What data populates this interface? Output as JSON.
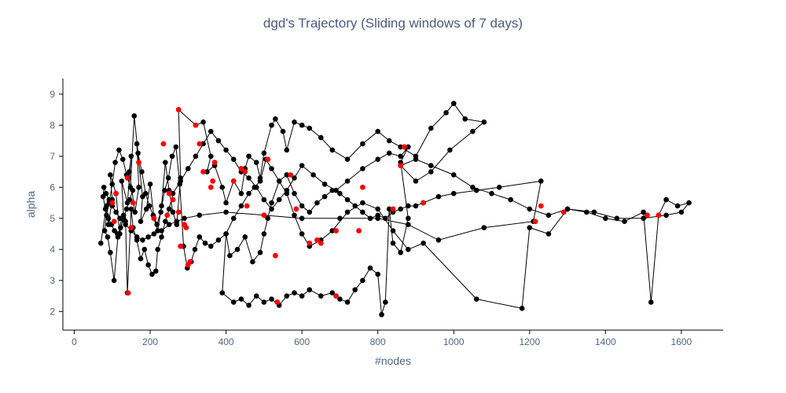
{
  "chart_data": {
    "type": "scatter",
    "mode": "lines+markers",
    "title": "dgd's Trajectory (Sliding windows of 7 days)",
    "xlabel": "#nodes",
    "ylabel": "alpha",
    "xlim": [
      -30,
      1710
    ],
    "ylim": [
      1.4,
      9.5
    ],
    "xticks": [
      0,
      200,
      400,
      600,
      800,
      1000,
      1200,
      1400,
      1600
    ],
    "yticks": [
      2,
      3,
      4,
      5,
      6,
      7,
      8,
      9
    ],
    "grid": false,
    "line_color": "#000000",
    "point_color": "#000000",
    "highlight_color": "#ff0000",
    "trajectory": [
      [
        70,
        4.2
      ],
      [
        85,
        5.4
      ],
      [
        90,
        4.8
      ],
      [
        100,
        5.6
      ],
      [
        95,
        6.4
      ],
      [
        110,
        5.8
      ],
      [
        120,
        4.5
      ],
      [
        130,
        5.1
      ],
      [
        125,
        6.2
      ],
      [
        140,
        5.5
      ],
      [
        150,
        7.0
      ],
      [
        145,
        6.5
      ],
      [
        160,
        5.2
      ],
      [
        170,
        6.0
      ],
      [
        165,
        7.4
      ],
      [
        180,
        5.7
      ],
      [
        175,
        4.9
      ],
      [
        190,
        5.3
      ],
      [
        200,
        6.1
      ],
      [
        210,
        5.0
      ],
      [
        220,
        4.6
      ],
      [
        230,
        5.4
      ],
      [
        240,
        6.8
      ],
      [
        250,
        5.9
      ],
      [
        260,
        5.2
      ],
      [
        270,
        4.8
      ],
      [
        280,
        6.3
      ],
      [
        275,
        8.5
      ],
      [
        320,
        8.0
      ],
      [
        340,
        8.1
      ],
      [
        360,
        7.0
      ],
      [
        350,
        6.5
      ],
      [
        370,
        6.7
      ],
      [
        390,
        6.0
      ],
      [
        400,
        5.5
      ],
      [
        420,
        6.2
      ],
      [
        440,
        5.8
      ],
      [
        450,
        6.6
      ],
      [
        460,
        7.0
      ],
      [
        480,
        6.8
      ],
      [
        490,
        6.3
      ],
      [
        500,
        7.1
      ],
      [
        520,
        8.0
      ],
      [
        530,
        8.2
      ],
      [
        550,
        7.8
      ],
      [
        560,
        7.2
      ],
      [
        580,
        8.1
      ],
      [
        600,
        8.0
      ],
      [
        620,
        7.9
      ],
      [
        650,
        7.6
      ],
      [
        680,
        7.2
      ],
      [
        720,
        6.9
      ],
      [
        760,
        7.4
      ],
      [
        800,
        7.8
      ],
      [
        830,
        7.5
      ],
      [
        860,
        7.3
      ],
      [
        900,
        7.0
      ],
      [
        940,
        7.9
      ],
      [
        980,
        8.4
      ],
      [
        1000,
        8.7
      ],
      [
        1030,
        8.2
      ],
      [
        1080,
        8.1
      ],
      [
        1050,
        7.8
      ],
      [
        990,
        7.2
      ],
      [
        940,
        6.5
      ],
      [
        900,
        6.2
      ],
      [
        860,
        6.7
      ],
      [
        900,
        6.9
      ],
      [
        940,
        6.7
      ],
      [
        1000,
        6.4
      ],
      [
        1050,
        6.0
      ],
      [
        1100,
        5.8
      ],
      [
        1150,
        5.6
      ],
      [
        1200,
        5.3
      ],
      [
        1250,
        5.1
      ],
      [
        1300,
        5.3
      ],
      [
        1350,
        5.2
      ],
      [
        1400,
        5.0
      ],
      [
        1450,
        4.9
      ],
      [
        1500,
        5.2
      ],
      [
        1520,
        2.3
      ],
      [
        1540,
        5.1
      ],
      [
        1560,
        5.6
      ],
      [
        1590,
        5.4
      ],
      [
        1620,
        5.5
      ],
      [
        1600,
        5.2
      ],
      [
        1560,
        5.1
      ],
      [
        1500,
        5.0
      ],
      [
        1430,
        5.0
      ],
      [
        1370,
        5.2
      ],
      [
        1300,
        5.3
      ],
      [
        1250,
        4.5
      ],
      [
        1200,
        4.7
      ],
      [
        1180,
        2.1
      ],
      [
        1060,
        2.4
      ],
      [
        920,
        4.2
      ],
      [
        880,
        4.0
      ],
      [
        840,
        4.6
      ],
      [
        800,
        5.3
      ],
      [
        760,
        5.5
      ],
      [
        720,
        5.2
      ],
      [
        680,
        4.6
      ],
      [
        650,
        4.3
      ],
      [
        620,
        4.1
      ],
      [
        600,
        4.5
      ],
      [
        580,
        5.1
      ],
      [
        560,
        5.8
      ],
      [
        540,
        6.2
      ],
      [
        520,
        5.5
      ],
      [
        510,
        5.0
      ],
      [
        500,
        4.5
      ],
      [
        490,
        3.9
      ],
      [
        470,
        3.6
      ],
      [
        450,
        4.4
      ],
      [
        430,
        4.0
      ],
      [
        410,
        3.8
      ],
      [
        400,
        4.5
      ],
      [
        390,
        2.6
      ],
      [
        420,
        2.3
      ],
      [
        440,
        2.4
      ],
      [
        460,
        2.2
      ],
      [
        480,
        2.5
      ],
      [
        500,
        2.3
      ],
      [
        520,
        2.4
      ],
      [
        540,
        2.2
      ],
      [
        560,
        2.5
      ],
      [
        580,
        2.6
      ],
      [
        600,
        2.5
      ],
      [
        620,
        2.7
      ],
      [
        650,
        2.5
      ],
      [
        680,
        2.6
      ],
      [
        700,
        2.4
      ],
      [
        720,
        2.3
      ],
      [
        740,
        2.7
      ],
      [
        760,
        3.0
      ],
      [
        780,
        3.4
      ],
      [
        800,
        3.2
      ],
      [
        810,
        1.9
      ],
      [
        820,
        2.3
      ],
      [
        830,
        5.3
      ],
      [
        840,
        4.2
      ],
      [
        860,
        3.9
      ],
      [
        880,
        5.0
      ],
      [
        860,
        6.8
      ],
      [
        880,
        7.3
      ],
      [
        860,
        7.0
      ],
      [
        830,
        7.1
      ],
      [
        800,
        6.9
      ],
      [
        760,
        6.6
      ],
      [
        720,
        6.2
      ],
      [
        690,
        5.9
      ],
      [
        660,
        6.1
      ],
      [
        630,
        6.4
      ],
      [
        600,
        6.7
      ],
      [
        580,
        6.3
      ],
      [
        560,
        5.9
      ],
      [
        540,
        5.6
      ],
      [
        520,
        5.3
      ],
      [
        500,
        5.6
      ],
      [
        480,
        6.0
      ],
      [
        460,
        6.3
      ],
      [
        440,
        6.5
      ],
      [
        420,
        6.9
      ],
      [
        400,
        7.2
      ],
      [
        380,
        7.5
      ],
      [
        360,
        7.8
      ],
      [
        340,
        7.4
      ],
      [
        320,
        7.0
      ],
      [
        300,
        6.6
      ],
      [
        280,
        6.2
      ],
      [
        260,
        5.8
      ],
      [
        250,
        5.3
      ],
      [
        240,
        4.9
      ],
      [
        230,
        4.4
      ],
      [
        220,
        4.0
      ],
      [
        215,
        3.3
      ],
      [
        205,
        3.2
      ],
      [
        195,
        3.5
      ],
      [
        185,
        4.0
      ],
      [
        175,
        3.7
      ],
      [
        165,
        4.3
      ],
      [
        155,
        4.7
      ],
      [
        150,
        5.3
      ],
      [
        140,
        2.6
      ],
      [
        135,
        4.9
      ],
      [
        125,
        5.0
      ],
      [
        115,
        4.4
      ],
      [
        105,
        3.0
      ],
      [
        95,
        3.9
      ],
      [
        88,
        4.4
      ],
      [
        80,
        4.6
      ],
      [
        85,
        5.1
      ],
      [
        92,
        5.5
      ],
      [
        100,
        6.1
      ],
      [
        108,
        6.8
      ],
      [
        118,
        7.2
      ],
      [
        128,
        6.9
      ],
      [
        138,
        6.4
      ],
      [
        148,
        6.0
      ],
      [
        158,
        8.3
      ],
      [
        168,
        7.1
      ],
      [
        178,
        6.5
      ],
      [
        188,
        5.8
      ],
      [
        198,
        5.4
      ],
      [
        208,
        5.1
      ],
      [
        218,
        4.8
      ],
      [
        228,
        5.2
      ],
      [
        238,
        5.9
      ],
      [
        248,
        6.3
      ],
      [
        258,
        7.0
      ],
      [
        268,
        7.3
      ],
      [
        278,
        6.1
      ],
      [
        288,
        4.1
      ],
      [
        298,
        3.4
      ],
      [
        308,
        3.6
      ],
      [
        318,
        4.0
      ],
      [
        330,
        4.4
      ],
      [
        345,
        4.2
      ],
      [
        360,
        4.1
      ],
      [
        380,
        4.3
      ],
      [
        400,
        4.5
      ],
      [
        420,
        5.0
      ],
      [
        440,
        5.4
      ],
      [
        460,
        5.8
      ],
      [
        475,
        6.0
      ],
      [
        490,
        6.2
      ],
      [
        505,
        6.9
      ],
      [
        520,
        6.6
      ],
      [
        540,
        6.2
      ],
      [
        560,
        6.4
      ],
      [
        580,
        5.8
      ],
      [
        600,
        5.4
      ],
      [
        620,
        5.2
      ],
      [
        640,
        5.5
      ],
      [
        660,
        5.7
      ],
      [
        680,
        5.9
      ],
      [
        700,
        5.8
      ],
      [
        720,
        5.6
      ],
      [
        740,
        5.4
      ],
      [
        760,
        5.2
      ],
      [
        780,
        5.0
      ],
      [
        800,
        5.1
      ],
      [
        820,
        5.0
      ],
      [
        840,
        5.2
      ],
      [
        860,
        5.3
      ],
      [
        880,
        5.4
      ],
      [
        900,
        5.4
      ],
      [
        920,
        5.5
      ],
      [
        960,
        5.7
      ],
      [
        1000,
        5.8
      ],
      [
        1060,
        5.9
      ],
      [
        1120,
        6.0
      ],
      [
        1230,
        6.2
      ],
      [
        1210,
        4.9
      ],
      [
        1080,
        4.7
      ],
      [
        960,
        4.3
      ],
      [
        880,
        4.8
      ],
      [
        800,
        5.0
      ],
      [
        700,
        5.0
      ],
      [
        600,
        5.0
      ],
      [
        500,
        5.1
      ],
      [
        400,
        5.2
      ],
      [
        330,
        5.1
      ],
      [
        290,
        5.0
      ],
      [
        270,
        4.9
      ],
      [
        250,
        4.8
      ],
      [
        230,
        4.6
      ],
      [
        210,
        4.5
      ],
      [
        195,
        4.4
      ],
      [
        180,
        4.3
      ],
      [
        165,
        4.4
      ],
      [
        150,
        4.6
      ],
      [
        135,
        4.8
      ],
      [
        120,
        5.0
      ],
      [
        110,
        5.2
      ],
      [
        100,
        5.4
      ],
      [
        92,
        5.6
      ],
      [
        84,
        5.8
      ],
      [
        78,
        6.0
      ],
      [
        76,
        5.7
      ],
      [
        82,
        5.3
      ],
      [
        90,
        5.0
      ],
      [
        98,
        4.8
      ],
      [
        106,
        4.6
      ],
      [
        114,
        4.5
      ],
      [
        122,
        4.7
      ],
      [
        130,
        5.0
      ],
      [
        138,
        5.3
      ],
      [
        146,
        5.6
      ],
      [
        154,
        5.9
      ]
    ],
    "highlighted_points": [
      [
        142,
        2.6
      ],
      [
        100,
        5.5
      ],
      [
        110,
        5.8
      ],
      [
        140,
        6.3
      ],
      [
        170,
        6.8
      ],
      [
        235,
        7.4
      ],
      [
        275,
        8.5
      ],
      [
        245,
        5.1
      ],
      [
        280,
        4.1
      ],
      [
        300,
        3.5
      ],
      [
        305,
        3.6
      ],
      [
        330,
        7.4
      ],
      [
        320,
        8.0
      ],
      [
        340,
        6.5
      ],
      [
        360,
        6.0
      ],
      [
        365,
        6.2
      ],
      [
        370,
        6.8
      ],
      [
        420,
        6.2
      ],
      [
        440,
        6.6
      ],
      [
        450,
        6.5
      ],
      [
        455,
        5.4
      ],
      [
        500,
        5.1
      ],
      [
        510,
        6.9
      ],
      [
        530,
        3.8
      ],
      [
        535,
        2.3
      ],
      [
        570,
        6.4
      ],
      [
        585,
        5.3
      ],
      [
        620,
        4.2
      ],
      [
        640,
        4.3
      ],
      [
        650,
        4.2
      ],
      [
        690,
        4.6
      ],
      [
        690,
        2.5
      ],
      [
        750,
        4.6
      ],
      [
        760,
        6.0
      ],
      [
        840,
        5.3
      ],
      [
        860,
        6.7
      ],
      [
        870,
        7.3
      ],
      [
        920,
        5.5
      ],
      [
        1215,
        4.9
      ],
      [
        1230,
        5.4
      ],
      [
        1290,
        5.2
      ],
      [
        1510,
        5.1
      ],
      [
        1540,
        5.1
      ],
      [
        250,
        5.8
      ],
      [
        260,
        5.6
      ],
      [
        275,
        5.2
      ],
      [
        290,
        4.8
      ],
      [
        295,
        4.7
      ],
      [
        105,
        4.9
      ],
      [
        150,
        4.7
      ],
      [
        155,
        5.5
      ],
      [
        210,
        5.0
      ]
    ]
  }
}
